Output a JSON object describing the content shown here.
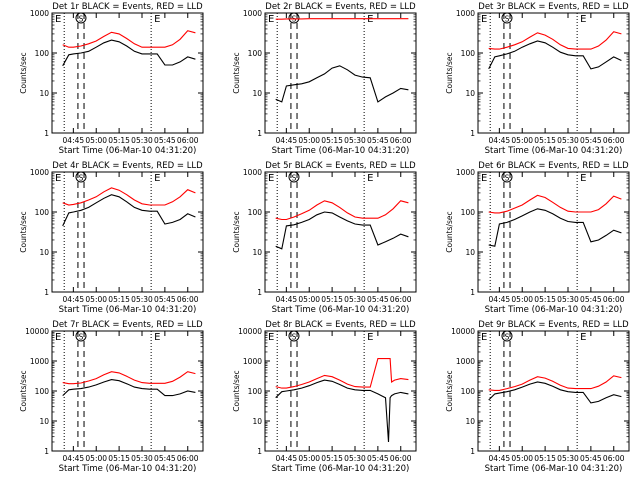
{
  "figure": {
    "time_axis_label": "Start Time (06-Mar-10 04:31:20)",
    "y_axis_label": "Counts/sec",
    "x_tick_labels": [
      "04:45",
      "05:00",
      "05:15",
      "05:30",
      "05:45",
      "06:00"
    ],
    "y_tick_labels": [
      "1",
      "10",
      "100",
      "1000"
    ],
    "event_markers": {
      "eclipse": "E",
      "saa": "S"
    }
  },
  "colors": {
    "events": "#000000",
    "lld": "#ff0000",
    "background": "#ffffff"
  },
  "chart_data": [
    {
      "type": "line",
      "title": "Det 1r  BLACK = Events, RED = LLD",
      "xlabel": "Start Time (06-Mar-10 04:31:20)",
      "ylabel": "Counts/sec",
      "yscale": "log",
      "ylim": [
        1,
        1000
      ],
      "x": [
        "04:38",
        "04:42",
        "04:45",
        "04:50",
        "04:55",
        "05:00",
        "05:05",
        "05:10",
        "05:15",
        "05:20",
        "05:25",
        "05:30",
        "05:35",
        "05:40",
        "05:45",
        "05:50",
        "05:55",
        "06:00",
        "06:05"
      ],
      "series": [
        {
          "name": "BLACK = Events",
          "values": [
            48,
            90,
            95,
            100,
            110,
            140,
            180,
            210,
            190,
            150,
            110,
            95,
            95,
            95,
            50,
            50,
            60,
            80,
            70
          ]
        },
        {
          "name": "RED = LLD",
          "values": [
            160,
            140,
            140,
            150,
            170,
            200,
            260,
            330,
            300,
            230,
            170,
            140,
            140,
            140,
            140,
            160,
            220,
            360,
            320
          ]
        }
      ]
    },
    {
      "type": "line",
      "title": "Det 2r  BLACK = Events, RED = LLD",
      "xlabel": "Start Time (06-Mar-10 04:31:20)",
      "ylabel": "Counts/sec",
      "yscale": "log",
      "ylim": [
        1,
        1000
      ],
      "x": [
        "04:38",
        "04:42",
        "04:45",
        "04:50",
        "04:55",
        "05:00",
        "05:05",
        "05:10",
        "05:15",
        "05:20",
        "05:25",
        "05:30",
        "05:35",
        "05:40",
        "05:45",
        "05:50",
        "05:55",
        "06:00",
        "06:05"
      ],
      "series": [
        {
          "name": "BLACK = Events",
          "values": [
            7,
            6,
            15,
            16,
            17,
            19,
            24,
            30,
            42,
            48,
            38,
            28,
            25,
            24,
            6,
            8,
            10,
            13,
            12
          ]
        },
        {
          "name": "RED = LLD",
          "values": [
            700,
            700,
            710,
            710,
            710,
            720,
            720,
            720,
            720,
            720,
            720,
            720,
            720,
            720,
            720,
            720,
            720,
            720,
            720
          ]
        }
      ]
    },
    {
      "type": "line",
      "title": "Det 3r  BLACK = Events, RED = LLD",
      "xlabel": "Start Time (06-Mar-10 04:31:20)",
      "ylabel": "Counts/sec",
      "yscale": "log",
      "ylim": [
        1,
        1000
      ],
      "x": [
        "04:38",
        "04:42",
        "04:45",
        "04:50",
        "04:55",
        "05:00",
        "05:05",
        "05:10",
        "05:15",
        "05:20",
        "05:25",
        "05:30",
        "05:35",
        "05:40",
        "05:45",
        "05:50",
        "05:55",
        "06:00",
        "06:05"
      ],
      "series": [
        {
          "name": "BLACK = Events",
          "values": [
            40,
            80,
            85,
            95,
            110,
            140,
            170,
            200,
            180,
            140,
            105,
            90,
            85,
            85,
            40,
            45,
            60,
            80,
            65
          ]
        },
        {
          "name": "RED = LLD",
          "values": [
            130,
            125,
            125,
            140,
            160,
            190,
            250,
            320,
            280,
            220,
            160,
            130,
            125,
            125,
            125,
            150,
            210,
            340,
            300
          ]
        }
      ]
    },
    {
      "type": "line",
      "title": "Det 4r  BLACK = Events, RED = LLD",
      "xlabel": "Start Time (06-Mar-10 04:31:20)",
      "ylabel": "Counts/sec",
      "yscale": "log",
      "ylim": [
        1,
        1000
      ],
      "x": [
        "04:38",
        "04:42",
        "04:45",
        "04:50",
        "04:55",
        "05:00",
        "05:05",
        "05:10",
        "05:15",
        "05:20",
        "05:25",
        "05:30",
        "05:35",
        "05:40",
        "05:45",
        "05:50",
        "05:55",
        "06:00",
        "06:05"
      ],
      "series": [
        {
          "name": "BLACK = Events",
          "values": [
            45,
            95,
            100,
            110,
            130,
            170,
            220,
            270,
            240,
            180,
            130,
            110,
            105,
            105,
            50,
            55,
            65,
            90,
            75
          ]
        },
        {
          "name": "RED = LLD",
          "values": [
            170,
            150,
            155,
            170,
            200,
            240,
            320,
            400,
            350,
            270,
            200,
            160,
            150,
            150,
            150,
            180,
            240,
            360,
            300
          ]
        }
      ]
    },
    {
      "type": "line",
      "title": "Det 5r  BLACK = Events, RED = LLD",
      "xlabel": "Start Time (06-Mar-10 04:31:20)",
      "ylabel": "Counts/sec",
      "yscale": "log",
      "ylim": [
        1,
        1000
      ],
      "x": [
        "04:38",
        "04:42",
        "04:45",
        "04:50",
        "04:55",
        "05:00",
        "05:05",
        "05:10",
        "05:15",
        "05:20",
        "05:25",
        "05:30",
        "05:35",
        "05:40",
        "05:45",
        "05:50",
        "05:55",
        "06:00",
        "06:05"
      ],
      "series": [
        {
          "name": "BLACK = Events",
          "values": [
            14,
            12,
            45,
            48,
            55,
            65,
            85,
            100,
            95,
            75,
            60,
            50,
            47,
            47,
            15,
            18,
            22,
            28,
            24
          ]
        },
        {
          "name": "RED = LLD",
          "values": [
            70,
            65,
            65,
            75,
            90,
            110,
            150,
            190,
            170,
            130,
            95,
            75,
            70,
            70,
            70,
            85,
            120,
            190,
            170
          ]
        }
      ]
    },
    {
      "type": "line",
      "title": "Det 6r  BLACK = Events, RED = LLD",
      "xlabel": "Start Time (06-Mar-10 04:31:20)",
      "ylabel": "Counts/sec",
      "yscale": "log",
      "ylim": [
        1,
        1000
      ],
      "x": [
        "04:38",
        "04:42",
        "04:45",
        "04:50",
        "04:55",
        "05:00",
        "05:05",
        "05:10",
        "05:15",
        "05:20",
        "05:25",
        "05:30",
        "05:35",
        "05:40",
        "05:45",
        "05:50",
        "05:55",
        "06:00",
        "06:05"
      ],
      "series": [
        {
          "name": "BLACK = Events",
          "values": [
            15,
            14,
            50,
            55,
            65,
            80,
            100,
            120,
            110,
            90,
            70,
            58,
            55,
            55,
            18,
            20,
            26,
            35,
            30
          ]
        },
        {
          "name": "RED = LLD",
          "values": [
            100,
            95,
            95,
            105,
            125,
            150,
            200,
            260,
            230,
            175,
            130,
            105,
            100,
            100,
            100,
            115,
            160,
            250,
            210
          ]
        }
      ]
    },
    {
      "type": "line",
      "title": "Det 7r  BLACK = Events, RED = LLD",
      "xlabel": "Start Time (06-Mar-10 04:31:20)",
      "ylabel": "Counts/sec",
      "yscale": "log",
      "ylim": [
        1,
        10000
      ],
      "x": [
        "04:38",
        "04:42",
        "04:45",
        "04:50",
        "04:55",
        "05:00",
        "05:05",
        "05:10",
        "05:15",
        "05:20",
        "05:25",
        "05:30",
        "05:35",
        "05:40",
        "05:45",
        "05:50",
        "05:55",
        "06:00",
        "06:05"
      ],
      "series": [
        {
          "name": "BLACK = Events",
          "values": [
            70,
            110,
            115,
            120,
            135,
            160,
            200,
            240,
            220,
            175,
            135,
            120,
            115,
            115,
            70,
            70,
            80,
            100,
            90
          ]
        },
        {
          "name": "RED = LLD",
          "values": [
            190,
            175,
            175,
            185,
            215,
            260,
            350,
            440,
            400,
            310,
            230,
            190,
            180,
            180,
            180,
            210,
            290,
            440,
            380
          ]
        }
      ]
    },
    {
      "type": "line",
      "title": "Det 8r  BLACK = Events, RED = LLD",
      "xlabel": "Start Time (06-Mar-10 04:31:20)",
      "ylabel": "Counts/sec",
      "yscale": "log",
      "ylim": [
        1,
        10000
      ],
      "x": [
        "04:38",
        "04:42",
        "04:45",
        "04:50",
        "04:55",
        "05:00",
        "05:05",
        "05:10",
        "05:15",
        "05:20",
        "05:25",
        "05:30",
        "05:35",
        "05:40",
        "05:45",
        "05:50",
        "05:52",
        "05:53",
        "05:54",
        "05:56",
        "06:00",
        "06:05"
      ],
      "series": [
        {
          "name": "BLACK = Events",
          "values": [
            60,
            95,
            100,
            110,
            125,
            150,
            190,
            230,
            210,
            165,
            125,
            110,
            105,
            105,
            80,
            60,
            2,
            60,
            70,
            80,
            90,
            80
          ]
        },
        {
          "name": "RED = LLD",
          "values": [
            140,
            125,
            125,
            140,
            165,
            200,
            260,
            330,
            300,
            230,
            170,
            140,
            135,
            135,
            1200,
            1200,
            1200,
            1200,
            200,
            230,
            260,
            240
          ]
        }
      ]
    },
    {
      "type": "line",
      "title": "Det 9r  BLACK = Events, RED = LLD",
      "xlabel": "Start Time (06-Mar-10 04:31:20)",
      "ylabel": "Counts/sec",
      "yscale": "log",
      "ylim": [
        1,
        10000
      ],
      "x": [
        "04:38",
        "04:42",
        "04:45",
        "04:50",
        "04:55",
        "05:00",
        "05:05",
        "05:10",
        "05:15",
        "05:20",
        "05:25",
        "05:30",
        "05:35",
        "05:40",
        "05:45",
        "05:50",
        "05:55",
        "06:00",
        "06:05"
      ],
      "series": [
        {
          "name": "BLACK = Events",
          "values": [
            50,
            80,
            85,
            95,
            110,
            135,
            170,
            200,
            180,
            145,
            110,
            95,
            90,
            90,
            40,
            45,
            60,
            75,
            65
          ]
        },
        {
          "name": "RED = LLD",
          "values": [
            110,
            105,
            105,
            120,
            140,
            170,
            230,
            300,
            270,
            210,
            155,
            125,
            120,
            120,
            120,
            145,
            200,
            320,
            280
          ]
        }
      ]
    }
  ]
}
